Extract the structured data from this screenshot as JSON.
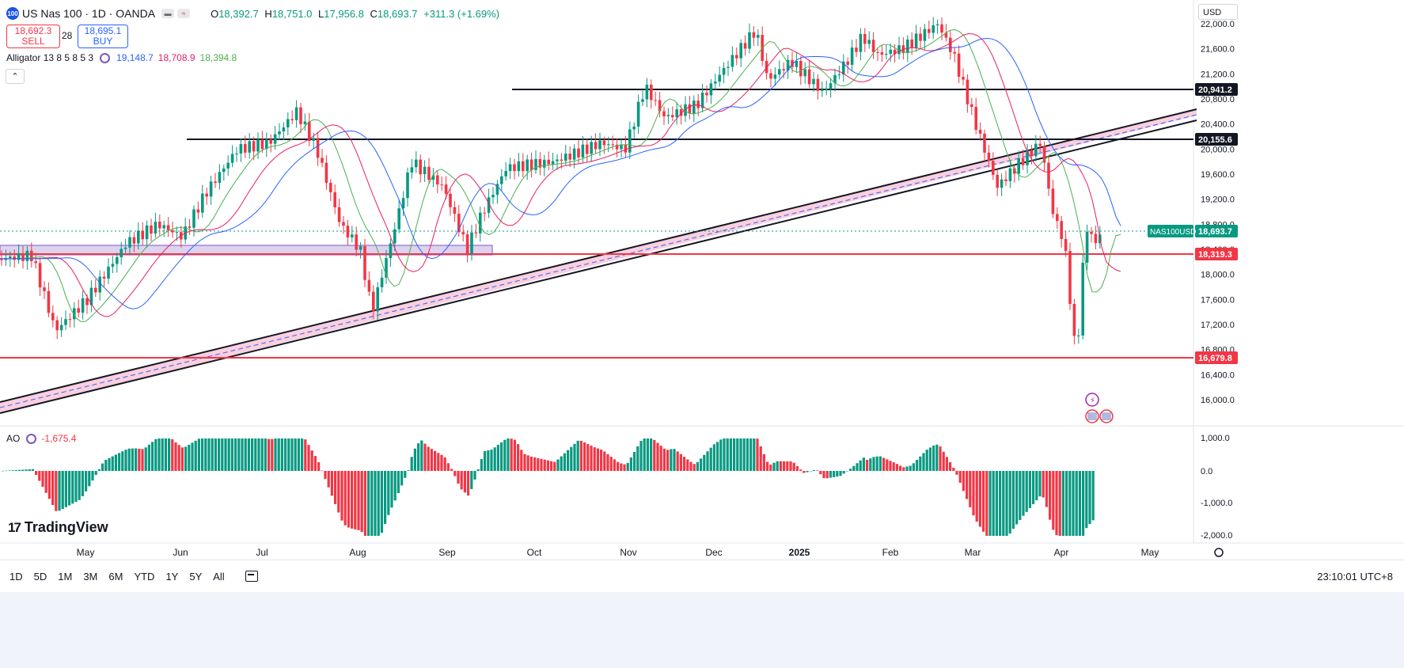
{
  "header": {
    "logo_text": "100",
    "symbol": "US Nas 100 · 1D · OANDA",
    "ohlc": [
      {
        "k": "O",
        "v": "18,392.7"
      },
      {
        "k": "H",
        "v": "18,751.0"
      },
      {
        "k": "L",
        "v": "17,956.8"
      },
      {
        "k": "C",
        "v": "18,693.7"
      }
    ],
    "change": "+311.3 (+1.69%)"
  },
  "trade": {
    "sell_price": "18,692.3",
    "sell_label": "SELL",
    "spread": "28",
    "buy_price": "18,695.1",
    "buy_label": "BUY"
  },
  "indicator": {
    "name": "Alligator 13 8 5 8 5 3",
    "jaw": "19,148.7",
    "teeth": "18,708.9",
    "lips": "18,394.8"
  },
  "ao": {
    "name": "AO",
    "value": "-1,675.4"
  },
  "currency": "USD",
  "price_axis": {
    "ticks": [
      "22,000.0",
      "21,600.0",
      "21,200.0",
      "20,800.0",
      "20,400.0",
      "20,000.0",
      "19,600.0",
      "19,200.0",
      "18,800.0",
      "18,400.0",
      "18,000.0",
      "17,600.0",
      "17,200.0",
      "16,800.0",
      "16,400.0",
      "16,000.0"
    ],
    "tags": [
      {
        "label": "20,941.2",
        "kind": "black"
      },
      {
        "label": "20,155.6",
        "kind": "black"
      },
      {
        "label": "18,693.7",
        "kind": "teal",
        "name": "NAS100USD"
      },
      {
        "label": "18,319.3",
        "kind": "red"
      },
      {
        "label": "16,679.8",
        "kind": "red"
      }
    ]
  },
  "ao_axis": {
    "ticks": [
      "1,000.0",
      "0.0",
      "-1,000.0",
      "-2,000.0"
    ]
  },
  "time_axis": {
    "labels": [
      "May",
      "Jun",
      "Jul",
      "Aug",
      "Sep",
      "Oct",
      "Nov",
      "Dec",
      "2025",
      "Feb",
      "Mar",
      "Apr",
      "May"
    ]
  },
  "ranges": [
    "1D",
    "5D",
    "1M",
    "3M",
    "6M",
    "YTD",
    "1Y",
    "5Y",
    "All"
  ],
  "clock": "23:10:01 UTC+8",
  "brand": "TradingView",
  "colors": {
    "up": "#089981",
    "down": "#f23645",
    "jaw": "#2962ff",
    "teeth": "#e91e63",
    "lips": "#4caf50"
  }
}
